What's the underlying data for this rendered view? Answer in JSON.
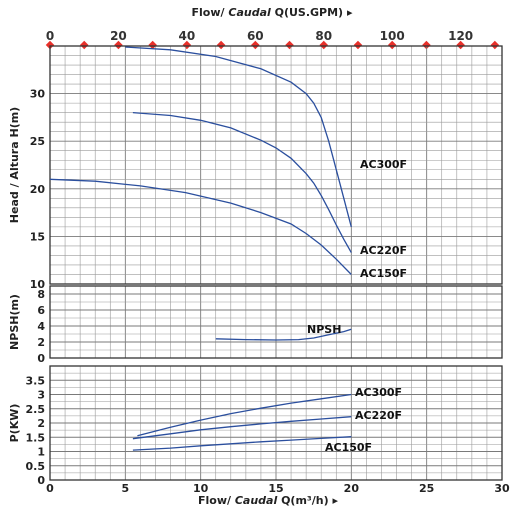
{
  "chart_data": {
    "type": "line",
    "top_axis": {
      "label_prefix": "Flow/ ",
      "label_italic": "Caudal",
      "label_suffix": " Q(US.GPM)",
      "arrow": "▸",
      "ticks": [
        "0",
        "20",
        "40",
        "60",
        "80",
        "100",
        "120"
      ],
      "tick_values_usgpm": [
        0,
        20,
        40,
        60,
        80,
        100,
        120
      ],
      "marker_values_usgpm": [
        0,
        10,
        20,
        30,
        40,
        50,
        60,
        70,
        80,
        90,
        100,
        110,
        120,
        130
      ],
      "marker_color": "#e8302a"
    },
    "bottom_axis": {
      "label_prefix": "Flow/ ",
      "label_italic": "Caudal",
      "label_suffix": " Q(m³/h)",
      "arrow": "▸",
      "ticks": [
        "0",
        "5",
        "10",
        "15",
        "20",
        "25",
        "30"
      ],
      "xlim": [
        0,
        30
      ]
    },
    "panels": [
      {
        "id": "head",
        "ylabel": "Head / Altura H(m)",
        "ylim": [
          10,
          35
        ],
        "yticks": [
          "10",
          "15",
          "20",
          "25",
          "30"
        ],
        "series": [
          {
            "name": "AC300F",
            "x": [
              5,
              8,
              11,
              14,
              16,
              17,
              17.5,
              18,
              18.5,
              19,
              19.5,
              20
            ],
            "y": [
              34.9,
              34.6,
              33.9,
              32.6,
              31.2,
              30.0,
              29.0,
              27.5,
              25.0,
              22.0,
              19.0,
              16.0
            ]
          },
          {
            "name": "AC220F",
            "x": [
              5.5,
              8,
              10,
              12,
              14,
              15,
              16,
              17,
              17.5,
              18,
              18.5,
              19,
              19.5,
              20
            ],
            "y": [
              28.0,
              27.7,
              27.2,
              26.4,
              25.1,
              24.3,
              23.2,
              21.6,
              20.6,
              19.3,
              17.8,
              16.2,
              14.7,
              13.3
            ]
          },
          {
            "name": "AC150F",
            "x": [
              0,
              3,
              6,
              9,
              12,
              14,
              16,
              17,
              18,
              19,
              20
            ],
            "y": [
              21.0,
              20.8,
              20.3,
              19.6,
              18.5,
              17.5,
              16.3,
              15.3,
              14.1,
              12.6,
              11.0
            ]
          }
        ]
      },
      {
        "id": "npsh",
        "ylabel": "NPSH(m)",
        "ylim": [
          0,
          9
        ],
        "yticks": [
          "0",
          "2",
          "4",
          "6",
          "8"
        ],
        "series": [
          {
            "name": "NPSH",
            "x": [
              11,
              13,
              15,
              16.5,
              17.5,
              18.5,
              19.5,
              20
            ],
            "y": [
              2.4,
              2.3,
              2.25,
              2.3,
              2.5,
              2.9,
              3.3,
              3.6
            ]
          }
        ]
      },
      {
        "id": "power",
        "ylabel": "P(KW)",
        "ylim": [
          0,
          4
        ],
        "yticks": [
          "0",
          "0.5",
          "1",
          "1.5",
          "2",
          "2.5",
          "3",
          "3.5"
        ],
        "series": [
          {
            "name": "AC300F",
            "x": [
              5.8,
              8,
              10,
              12,
              14,
              16,
              18,
              20
            ],
            "y": [
              1.55,
              1.85,
              2.1,
              2.33,
              2.52,
              2.7,
              2.85,
              3.0
            ]
          },
          {
            "name": "AC220F",
            "x": [
              5.5,
              8,
              10,
              12,
              14,
              16,
              18,
              20
            ],
            "y": [
              1.45,
              1.62,
              1.76,
              1.87,
              1.97,
              2.06,
              2.14,
              2.22
            ]
          },
          {
            "name": "AC150F",
            "x": [
              5.5,
              8,
              10,
              12,
              14,
              16,
              18,
              20
            ],
            "y": [
              1.05,
              1.12,
              1.2,
              1.27,
              1.34,
              1.4,
              1.46,
              1.52
            ]
          }
        ]
      }
    ],
    "curve_color": "#2b4f9e",
    "grid": true
  }
}
